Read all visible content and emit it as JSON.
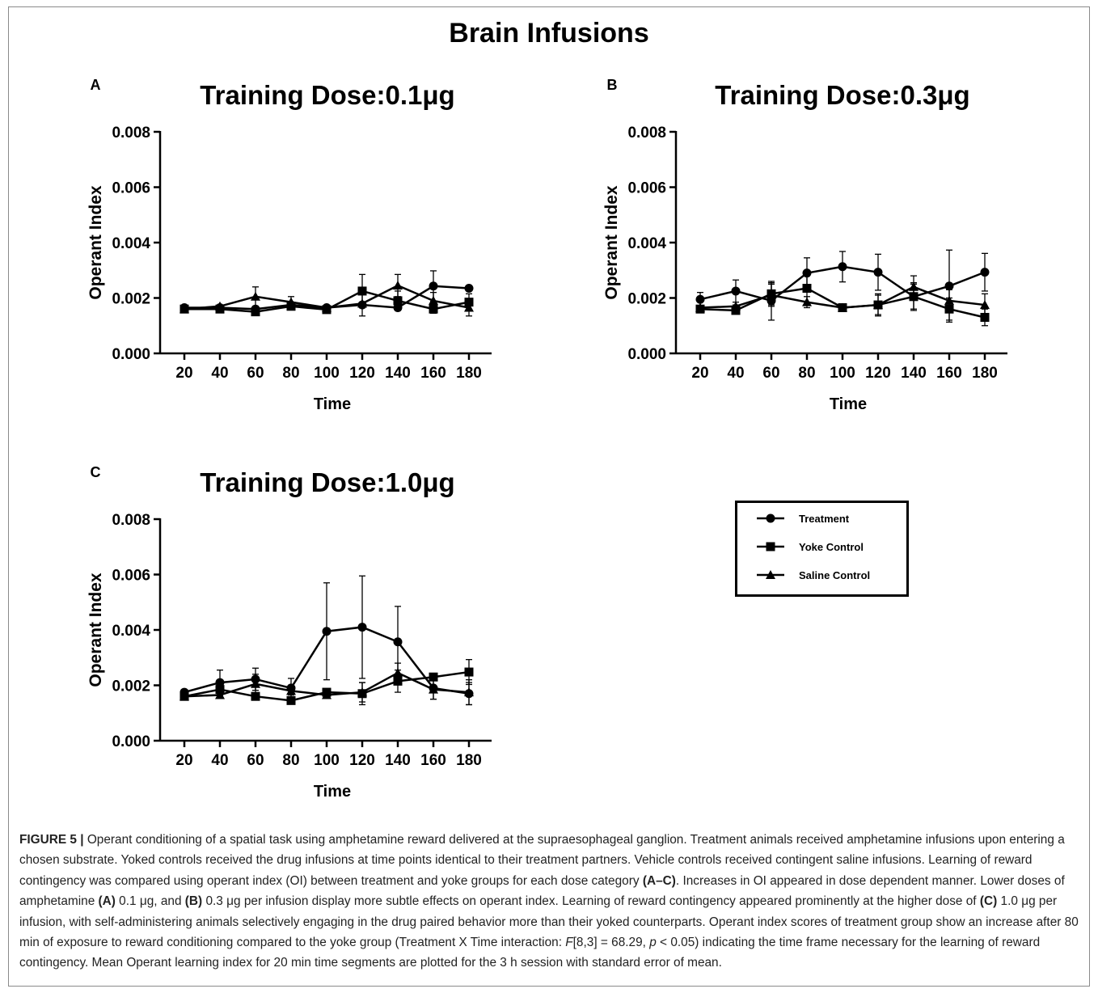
{
  "figure_title": "Brain Infusions",
  "legend": [
    {
      "label": "Treatment",
      "marker": "circle"
    },
    {
      "label": "Yoke Control",
      "marker": "square"
    },
    {
      "label": "Saline Control",
      "marker": "triangle"
    }
  ],
  "chart_data": [
    {
      "type": "line",
      "panel": "A",
      "title": "Training Dose:0.1μg",
      "xlabel": "Time",
      "ylabel": "Operant Index",
      "x": [
        20,
        40,
        60,
        80,
        100,
        120,
        140,
        160,
        180
      ],
      "xticks": [
        "20",
        "40",
        "60",
        "80",
        "100",
        "120",
        "140",
        "160",
        "180"
      ],
      "yticks": [
        "0.000",
        "0.002",
        "0.004",
        "0.006",
        "0.008"
      ],
      "ylim": [
        0,
        0.008
      ],
      "series": [
        {
          "name": "Treatment",
          "values": [
            0.00165,
            0.00165,
            0.0016,
            0.00175,
            0.00165,
            0.00175,
            0.00165,
            0.00243,
            0.00235
          ],
          "err": [
            3e-05,
            3e-05,
            5e-05,
            0.0001,
            5e-05,
            0.0001,
            0.0001,
            0.00055,
            3e-05
          ]
        },
        {
          "name": "Yoke Control",
          "values": [
            0.0016,
            0.0016,
            0.0015,
            0.0017,
            0.00158,
            0.00225,
            0.0019,
            0.0016,
            0.00185
          ],
          "err": [
            3e-05,
            3e-05,
            5e-05,
            5e-05,
            5e-05,
            0.0006,
            0.00035,
            0.00015,
            0.0003
          ]
        },
        {
          "name": "Saline Control",
          "values": [
            0.0016,
            0.0017,
            0.00205,
            0.00185,
            0.00165,
            0.0018,
            0.00245,
            0.0019,
            0.00165
          ],
          "err": [
            3e-05,
            5e-05,
            0.00035,
            0.0002,
            5e-05,
            0.00045,
            0.0004,
            0.0003,
            0.0003
          ]
        }
      ]
    },
    {
      "type": "line",
      "panel": "B",
      "title": "Training Dose:0.3μg",
      "xlabel": "Time",
      "ylabel": "Operant Index",
      "x": [
        20,
        40,
        60,
        80,
        100,
        120,
        140,
        160,
        180
      ],
      "xticks": [
        "20",
        "40",
        "60",
        "80",
        "100",
        "120",
        "140",
        "160",
        "180"
      ],
      "yticks": [
        "0.000",
        "0.002",
        "0.004",
        "0.006",
        "0.008"
      ],
      "ylim": [
        0,
        0.008
      ],
      "series": [
        {
          "name": "Treatment",
          "values": [
            0.00195,
            0.00225,
            0.0019,
            0.0029,
            0.00313,
            0.00293,
            0.00205,
            0.00243,
            0.00293
          ],
          "err": [
            0.00025,
            0.0004,
            0.0007,
            0.00055,
            0.00055,
            0.00065,
            0.0005,
            0.0013,
            0.00068
          ]
        },
        {
          "name": "Yoke Control",
          "values": [
            0.0016,
            0.00155,
            0.00215,
            0.00235,
            0.00165,
            0.00175,
            0.00205,
            0.0016,
            0.0013
          ],
          "err": [
            5e-05,
            5e-05,
            0.0004,
            0.0006,
            5e-05,
            0.0004,
            0.00045,
            0.0004,
            0.0003
          ]
        },
        {
          "name": "Saline Control",
          "values": [
            0.00165,
            0.0017,
            0.0021,
            0.00185,
            0.00165,
            0.00175,
            0.0024,
            0.0019,
            0.00175
          ],
          "err": [
            5e-05,
            5e-05,
            0.0004,
            0.0002,
            5e-05,
            0.00035,
            0.0004,
            0.0004,
            0.0004
          ]
        }
      ]
    },
    {
      "type": "line",
      "panel": "C",
      "title": "Training Dose:1.0μg",
      "xlabel": "Time",
      "ylabel": "Operant Index",
      "x": [
        20,
        40,
        60,
        80,
        100,
        120,
        140,
        160,
        180
      ],
      "xticks": [
        "20",
        "40",
        "60",
        "80",
        "100",
        "120",
        "140",
        "160",
        "180"
      ],
      "yticks": [
        "0.000",
        "0.002",
        "0.004",
        "0.006",
        "0.008"
      ],
      "ylim": [
        0,
        0.008
      ],
      "series": [
        {
          "name": "Treatment",
          "values": [
            0.00175,
            0.0021,
            0.00222,
            0.0019,
            0.00395,
            0.0041,
            0.00357,
            0.0019,
            0.0017
          ],
          "err": [
            5e-05,
            0.00045,
            0.0004,
            0.00035,
            0.00175,
            0.00185,
            0.00128,
            0.0004,
            0.0004
          ]
        },
        {
          "name": "Yoke Control",
          "values": [
            0.0016,
            0.00185,
            0.0016,
            0.00145,
            0.00175,
            0.0017,
            0.00215,
            0.0023,
            0.00248
          ],
          "err": [
            5e-05,
            0.0002,
            5e-05,
            5e-05,
            0.0001,
            0.0004,
            0.0004,
            0.0001,
            0.00045
          ]
        },
        {
          "name": "Saline Control",
          "values": [
            0.0016,
            0.00165,
            0.00205,
            0.0018,
            0.00165,
            0.00175,
            0.00245,
            0.00185,
            0.00175
          ],
          "err": [
            5e-05,
            5e-05,
            0.00035,
            0.00015,
            5e-05,
            0.00035,
            0.00035,
            0.00035,
            0.00045
          ]
        }
      ]
    }
  ],
  "caption": {
    "p1_label": "FIGURE 5 |",
    "p1_text": " Operant conditioning of a spatial task using amphetamine reward delivered at the supraesophageal ganglion. Treatment animals received amphetamine infusions upon entering a chosen substrate. Yoked controls received the drug infusions at time points identical to their treatment partners. Vehicle controls received contingent saline infusions. Learning of reward contingency was compared using operant index (OI) between treatment and yoke groups for each dose category ",
    "ref_ac": "(A–C)",
    "p2": ". Increases in OI appeared in dose dependent manner. Lower doses of amphetamine ",
    "ref_a": "(A)",
    "p3": " 0.1 μg, and ",
    "ref_b": "(B)",
    "p4": " 0.3 μg per infusion display more subtle effects on operant index. Learning of reward contingency appeared prominently at the higher dose of ",
    "ref_c": "(C)",
    "p5": " 1.0 μg per infusion, with self-administering animals selectively engaging in the drug paired behavior more than their yoked counterparts. Operant index scores of treatment group show an increase after 80 min of exposure to reward conditioning compared to the yoke group (Treatment X Time interaction: ",
    "stat_f": "F",
    "p6": "[8,3] = 68.29, ",
    "stat_p": "p",
    "p7": " < 0.05) indicating the time frame necessary for the learning of reward contingency. Mean Operant learning index for 20 min time segments are plotted for the 3 h session with standard error of mean."
  }
}
